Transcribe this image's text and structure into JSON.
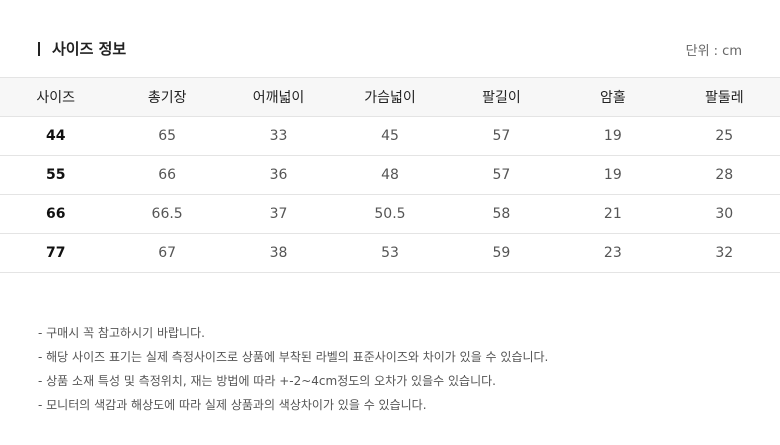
{
  "title": "사이즈 정보",
  "unit": "단위 : cm",
  "table": {
    "headers": [
      "사이즈",
      "총기장",
      "어깨넓이",
      "가슴넓이",
      "팔길이",
      "암홀",
      "팔둘레"
    ],
    "rows": [
      [
        "44",
        "65",
        "33",
        "45",
        "57",
        "19",
        "25"
      ],
      [
        "55",
        "66",
        "36",
        "48",
        "57",
        "19",
        "28"
      ],
      [
        "66",
        "66.5",
        "37",
        "50.5",
        "58",
        "21",
        "30"
      ],
      [
        "77",
        "67",
        "38",
        "53",
        "59",
        "23",
        "32"
      ]
    ]
  },
  "notes": [
    "- 구매시 꼭 참고하시기 바랍니다.",
    "- 해당 사이즈 표기는 실제 측정사이즈로 상품에 부착된 라벨의 표준사이즈와 차이가 있을 수 있습니다.",
    "- 상품 소재 특성 및 측정위치, 재는 방법에 따라 +-2~4cm정도의 오차가 있을수 있습니다.",
    "- 모니터의 색감과 해상도에 따라 실제 상품과의 색상차이가 있을 수 있습니다."
  ]
}
